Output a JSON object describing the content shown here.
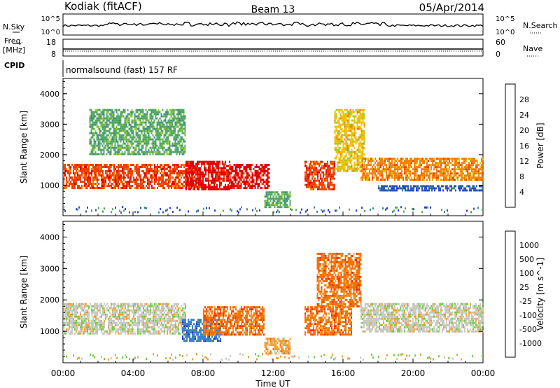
{
  "header": {
    "radar": "Kodiak (fitACF)",
    "beam": "Beam 13",
    "date": "05/Apr/2014"
  },
  "top_panels": {
    "nsky_label": "N.Sky",
    "nsearch_label": "N.Search",
    "noise_ticks": [
      "10^5",
      "10^0"
    ],
    "freq_label": "Freq.",
    "freq_unit": "[MHz]",
    "freq_ticks": [
      "18",
      "8"
    ],
    "nave_label": "Nave",
    "nave_ticks": [
      "60",
      "0"
    ],
    "cpid_label": "CPID",
    "cpid_text": "normalsound (fast) 157 RF"
  },
  "colors": {
    "power": [
      "#1f3fe0",
      "#2a52b8",
      "#3c8a90",
      "#53a860",
      "#9acd32",
      "#f0c000",
      "#f08000",
      "#f04000",
      "#e00000"
    ],
    "velocity": [
      "#1f3fb0",
      "#3c7ad0",
      "#3a8a60",
      "#6ad040",
      "#c8c8c0",
      "#f0a030",
      "#f07000",
      "#f03000",
      "#e00000"
    ]
  },
  "chart_data": [
    {
      "type": "heatmap",
      "parameter": "Power",
      "ylabel": "Slant Range [km]",
      "ylim": [
        0,
        4500
      ],
      "yticks": [
        1000,
        2000,
        3000,
        4000
      ],
      "xlim": [
        "00:00",
        "24:00"
      ],
      "colorbar_label": "Power [dB]",
      "colorbar_ticks": [
        4,
        8,
        12,
        16,
        20,
        24,
        28
      ],
      "regions": [
        {
          "start_hour": 0.0,
          "end_hour": 7.5,
          "range_km": [
            900,
            1700
          ],
          "dB": 24
        },
        {
          "start_hour": 7.0,
          "end_hour": 9.5,
          "range_km": [
            900,
            1800
          ],
          "dB": 26
        },
        {
          "start_hour": 9.5,
          "end_hour": 11.8,
          "range_km": [
            900,
            1700
          ],
          "dB": 26
        },
        {
          "start_hour": 11.5,
          "end_hour": 13.0,
          "range_km": [
            300,
            800
          ],
          "dB": 10
        },
        {
          "start_hour": 13.8,
          "end_hour": 15.5,
          "range_km": [
            900,
            1800
          ],
          "dB": 24
        },
        {
          "start_hour": 15.5,
          "end_hour": 17.2,
          "range_km": [
            1500,
            3500
          ],
          "dB": 18
        },
        {
          "start_hour": 17.0,
          "end_hour": 24.0,
          "range_km": [
            1200,
            1900
          ],
          "dB": 20
        },
        {
          "start_hour": 18.0,
          "end_hour": 24.0,
          "range_km": [
            800,
            1000
          ],
          "dB": 6
        },
        {
          "start_hour": 1.5,
          "end_hour": 7.0,
          "range_km": [
            2000,
            3500
          ],
          "dB": 12
        }
      ]
    },
    {
      "type": "heatmap",
      "parameter": "Velocity",
      "ylabel": "Slant Range [km]",
      "ylim": [
        0,
        4500
      ],
      "yticks": [
        1000,
        2000,
        3000,
        4000
      ],
      "xlim": [
        "00:00",
        "24:00"
      ],
      "xlabel": "Time UT",
      "xticks": [
        "00:00",
        "04:00",
        "08:00",
        "12:00",
        "16:00",
        "20:00",
        "00:00"
      ],
      "colorbar_label": "Velocity [m s^-1]",
      "colorbar_ticks": [
        1000,
        500,
        100,
        25,
        -25,
        -100,
        -500,
        -1000
      ],
      "regions": [
        {
          "start_hour": 0.0,
          "end_hour": 7.0,
          "range_km": [
            900,
            1900
          ],
          "m_s": 0
        },
        {
          "start_hour": 6.8,
          "end_hour": 9.0,
          "range_km": [
            700,
            1400
          ],
          "m_s": 150
        },
        {
          "start_hour": 8.0,
          "end_hour": 11.5,
          "range_km": [
            900,
            1800
          ],
          "m_s": -150
        },
        {
          "start_hour": 11.5,
          "end_hour": 13.0,
          "range_km": [
            300,
            800
          ],
          "m_s": -50
        },
        {
          "start_hour": 13.8,
          "end_hour": 16.5,
          "range_km": [
            900,
            1800
          ],
          "m_s": -150
        },
        {
          "start_hour": 14.5,
          "end_hour": 17.0,
          "range_km": [
            1800,
            3500
          ],
          "m_s": -200
        },
        {
          "start_hour": 17.0,
          "end_hour": 24.0,
          "range_km": [
            1000,
            1900
          ],
          "m_s": 0
        }
      ]
    }
  ]
}
